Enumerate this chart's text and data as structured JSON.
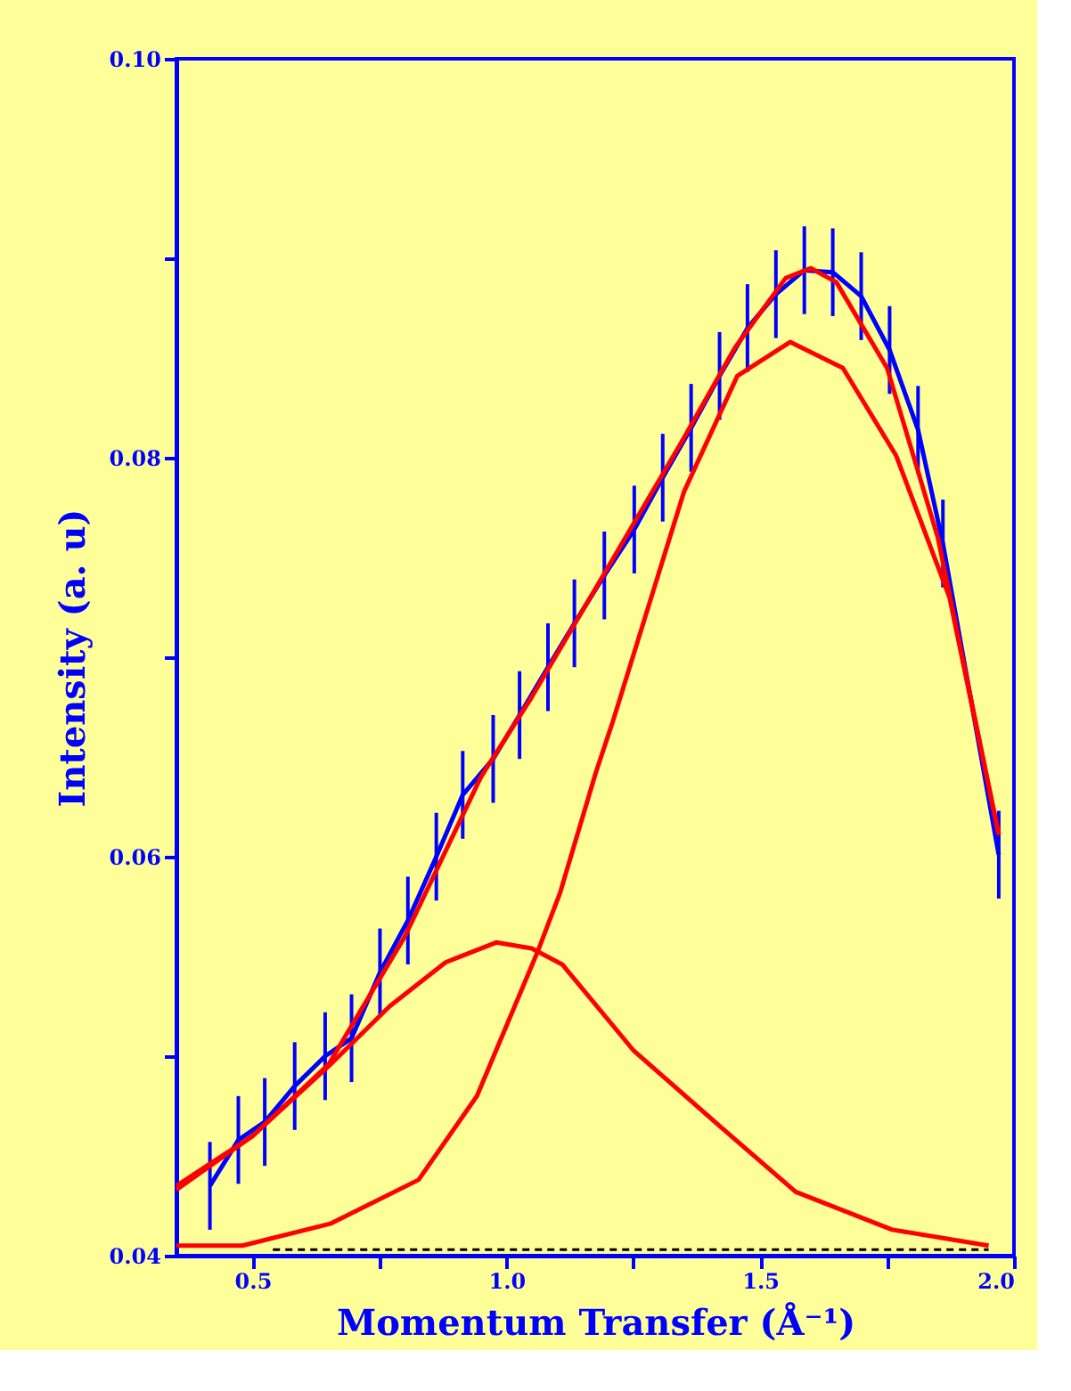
{
  "chart_data": {
    "type": "line",
    "xlabel": "Momentum Transfer (Å⁻¹)",
    "ylabel": "Intensity (a. u)",
    "xlim": [
      0.35,
      2.0
    ],
    "ylim": [
      0.04,
      0.1
    ],
    "xticks": [
      {
        "value": 0.5,
        "label": "0.5"
      },
      {
        "value": 0.75,
        "label": null
      },
      {
        "value": 1.0,
        "label": "1.0"
      },
      {
        "value": 1.25,
        "label": null
      },
      {
        "value": 1.5,
        "label": "1.5"
      },
      {
        "value": 1.75,
        "label": null
      },
      {
        "value": 2.0,
        "label": "2.0"
      }
    ],
    "yticks": [
      {
        "value": 0.04,
        "label": "0.04"
      },
      {
        "value": 0.05,
        "label": null
      },
      {
        "value": 0.06,
        "label": "0.06"
      },
      {
        "value": 0.07,
        "label": null
      },
      {
        "value": 0.08,
        "label": "0.08"
      },
      {
        "value": 0.09,
        "label": null
      },
      {
        "value": 0.1,
        "label": "0.10"
      }
    ],
    "grid": false,
    "marker": "none",
    "series": [
      {
        "color": "#0000ff",
        "line_style": "solid",
        "x": [
          0.416,
          0.472,
          0.524,
          0.583,
          0.643,
          0.695,
          0.751,
          0.806,
          0.862,
          0.914,
          0.974,
          1.026,
          1.082,
          1.134,
          1.193,
          1.252,
          1.308,
          1.364,
          1.42,
          1.475,
          1.531,
          1.587,
          1.643,
          1.699,
          1.755,
          1.811,
          1.86,
          1.97
        ],
        "values": [
          0.0435,
          0.0458,
          0.0467,
          0.0485,
          0.05,
          0.0509,
          0.0542,
          0.0568,
          0.06,
          0.0631,
          0.0649,
          0.0671,
          0.0695,
          0.0717,
          0.0741,
          0.0764,
          0.079,
          0.0815,
          0.0841,
          0.0865,
          0.0882,
          0.0894,
          0.0893,
          0.0881,
          0.0854,
          0.0814,
          0.0757,
          0.0601
        ],
        "errors": [
          0.0022,
          0.0022,
          0.0022,
          0.0022,
          0.0022,
          0.0022,
          0.0022,
          0.0022,
          0.0022,
          0.0022,
          0.0022,
          0.0022,
          0.0022,
          0.0022,
          0.0022,
          0.0022,
          0.0022,
          0.0022,
          0.0022,
          0.0022,
          0.0022,
          0.0022,
          0.0022,
          0.0022,
          0.0022,
          0.0022,
          0.0022,
          0.0022
        ]
      },
      {
        "color": "#ff0000",
        "line_style": "solid",
        "x": [
          0.35,
          0.5,
          0.65,
          0.8,
          0.95,
          1.05,
          1.2,
          1.35,
          1.45,
          1.55,
          1.6,
          1.65,
          1.75,
          1.85,
          1.97
        ],
        "values": [
          0.0433,
          0.046,
          0.0496,
          0.056,
          0.064,
          0.068,
          0.0745,
          0.081,
          0.0855,
          0.089,
          0.0895,
          0.0888,
          0.0845,
          0.076,
          0.0611
        ]
      },
      {
        "color": "#ff0000",
        "line_style": "solid",
        "x": [
          0.35,
          0.5,
          0.65,
          0.77,
          0.88,
          0.98,
          1.05,
          1.11,
          1.25,
          1.42,
          1.57,
          1.76,
          1.95
        ],
        "values": [
          0.0435,
          0.046,
          0.0495,
          0.0525,
          0.0547,
          0.0557,
          0.0554,
          0.0546,
          0.0503,
          0.0465,
          0.0432,
          0.0413,
          0.0405
        ]
      },
      {
        "color": "#ff0000",
        "line_style": "solid",
        "x": [
          0.35,
          0.48,
          0.653,
          0.827,
          0.942,
          1.061,
          1.106,
          1.176,
          1.21,
          1.35,
          1.455,
          1.559,
          1.663,
          1.768,
          1.873,
          1.97
        ],
        "values": [
          0.0405,
          0.0405,
          0.0416,
          0.0438,
          0.048,
          0.0552,
          0.0582,
          0.0642,
          0.0668,
          0.0783,
          0.0841,
          0.0858,
          0.0845,
          0.0801,
          0.073,
          0.0611
        ]
      },
      {
        "color": "#000000",
        "line_style": "dashed",
        "x": [
          0.54,
          1.95
        ],
        "values": [
          0.0403,
          0.0403
        ]
      }
    ]
  }
}
